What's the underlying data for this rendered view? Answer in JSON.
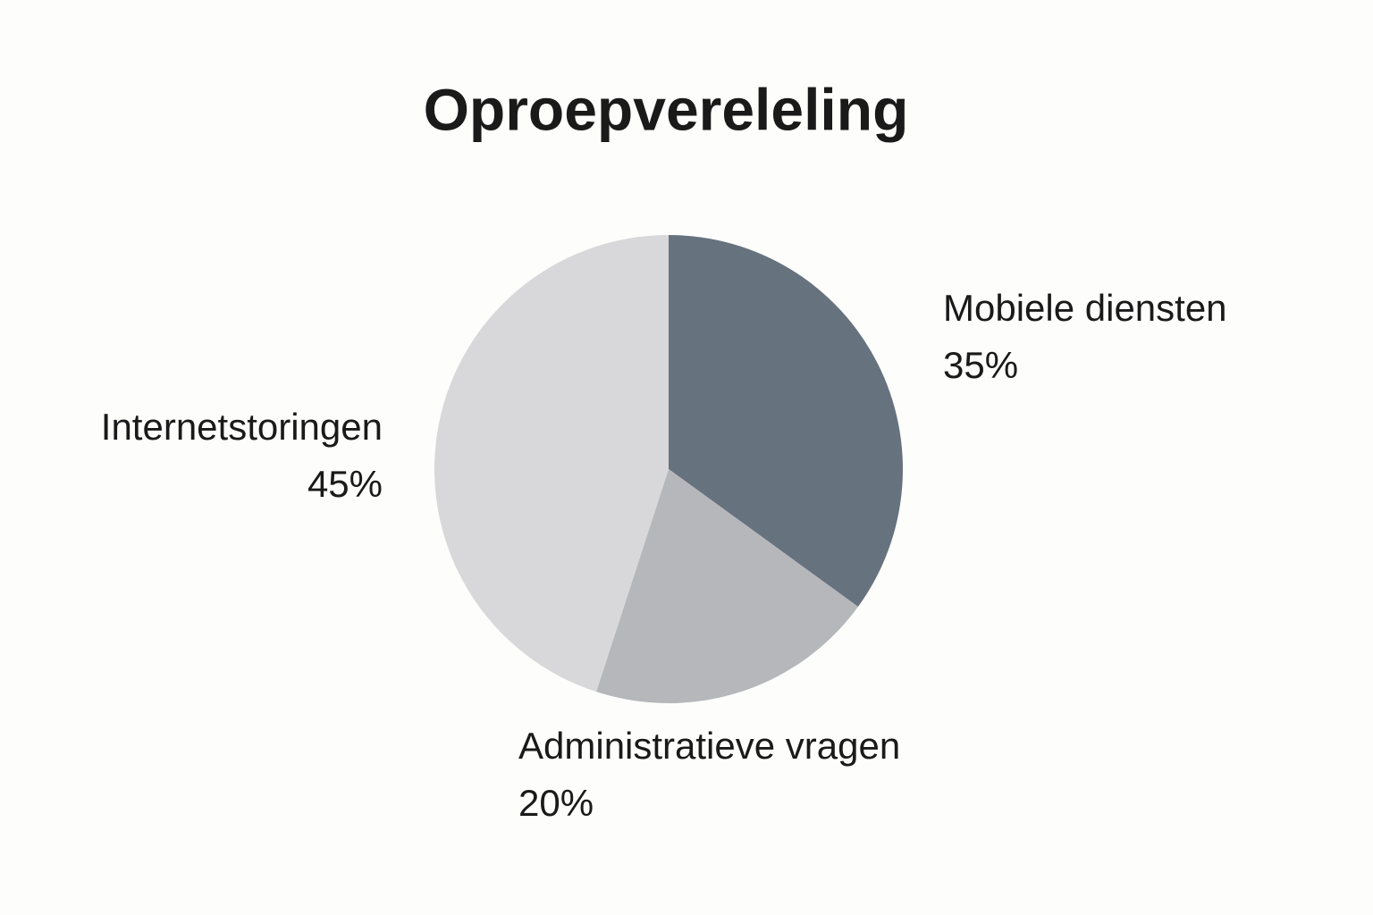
{
  "chart_data": {
    "type": "pie",
    "title": "Oproepvereleling",
    "categories": [
      "Mobiele diensten",
      "Administratieve vragen",
      "Internetstoringen"
    ],
    "values": [
      35,
      20,
      45
    ],
    "value_labels": [
      "35%",
      "20%",
      "45%"
    ],
    "colors": [
      "#67727f",
      "#b6b7bb",
      "#d8d8da"
    ]
  }
}
